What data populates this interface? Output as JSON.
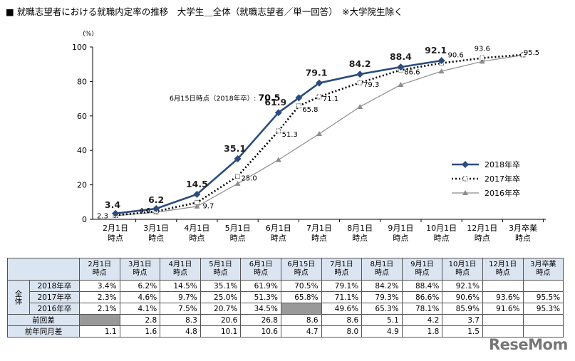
{
  "title": "■ 就職志望者における就職内定率の推移　大学生＿全体（就職志望者／単一回答）　※大学院生除く",
  "logo": "ReseMom",
  "chart_data": {
    "type": "line",
    "ylabel": "(%)",
    "ylim": [
      0,
      100
    ],
    "yticks": [
      "0",
      "20",
      "40",
      "60",
      "80",
      "100"
    ],
    "categories": [
      "2月1日|時点",
      "3月1日|時点",
      "4月1日|時点",
      "5月1日|時点",
      "6月1日|時点",
      "7月1日|時点",
      "8月1日|時点",
      "9月1日|時点",
      "10月1日|時点",
      "12月1日|時点",
      "3月卒業|時点"
    ],
    "series": [
      {
        "name": "2018年卒",
        "color": "#2b4c7e",
        "points": [
          [
            0,
            3.4
          ],
          [
            1,
            6.2
          ],
          [
            2,
            14.5
          ],
          [
            3,
            35.1
          ],
          [
            4,
            61.9
          ],
          [
            4.5,
            70.5
          ],
          [
            5,
            79.1
          ],
          [
            6,
            84.2
          ],
          [
            7,
            88.4
          ],
          [
            8,
            92.1
          ]
        ],
        "labels": [
          "3.4",
          "6.2",
          "14.5",
          "35.1",
          "61.9",
          "70.5",
          "79.1",
          "84.2",
          "88.4",
          "92.1"
        ]
      },
      {
        "name": "2017年卒",
        "color": "#000000",
        "points": [
          [
            0,
            2.3
          ],
          [
            1,
            4.6
          ],
          [
            2,
            9.7
          ],
          [
            3,
            25.0
          ],
          [
            4,
            51.3
          ],
          [
            4.5,
            65.8
          ],
          [
            5,
            71.1
          ],
          [
            6,
            79.3
          ],
          [
            7,
            86.6
          ],
          [
            8,
            90.6
          ],
          [
            9,
            93.6
          ],
          [
            10,
            95.5
          ]
        ],
        "labels": [
          "2.3",
          "4.6",
          "9.7",
          "25.0",
          "51.3",
          "65.8",
          "71.1",
          "79.3",
          "86.6",
          "90.6",
          "93.6",
          "95.5"
        ]
      },
      {
        "name": "2016年卒",
        "color": "#8c8c8c",
        "points": [
          [
            0,
            2.1
          ],
          [
            1,
            4.1
          ],
          [
            2,
            7.5
          ],
          [
            3,
            20.7
          ],
          [
            4,
            34.5
          ],
          [
            5,
            49.6
          ],
          [
            6,
            65.3
          ],
          [
            7,
            78.1
          ],
          [
            8,
            85.9
          ],
          [
            9,
            91.6
          ],
          [
            10,
            95.3
          ]
        ],
        "labels": []
      }
    ],
    "annotation": "6月15日時点（2018年卒）:"
  },
  "table": {
    "headers": [
      "2月1日|時点",
      "3月1日|時点",
      "4月1日|時点",
      "5月1日|時点",
      "6月1日|時点",
      "6月15日|時点",
      "7月1日|時点",
      "8月1日|時点",
      "9月1日|時点",
      "10月1日|時点",
      "12月1日|時点",
      "3月卒業|時点"
    ],
    "group_label": "全体",
    "rows": [
      {
        "label": "2018年卒",
        "cells": [
          "3.4%",
          "6.2%",
          "14.5%",
          "35.1%",
          "61.9%",
          "70.5%",
          "79.1%",
          "84.2%",
          "88.4%",
          "92.1%",
          "",
          ""
        ]
      },
      {
        "label": "2017年卒",
        "cells": [
          "2.3%",
          "4.6%",
          "9.7%",
          "25.0%",
          "51.3%",
          "65.8%",
          "71.1%",
          "79.3%",
          "86.6%",
          "90.6%",
          "93.6%",
          "95.5%"
        ]
      },
      {
        "label": "2016年卒",
        "cells": [
          "2.1%",
          "4.1%",
          "7.5%",
          "20.7%",
          "34.5%",
          "",
          "49.6%",
          "65.3%",
          "78.1%",
          "85.9%",
          "91.6%",
          "95.3%"
        ]
      },
      {
        "label": "前回差",
        "cells": [
          "",
          "2.8",
          "8.3",
          "20.6",
          "26.8",
          "8.6",
          "8.6",
          "5.1",
          "4.2",
          "3.7",
          "",
          ""
        ]
      },
      {
        "label": "前年同月差",
        "cells": [
          "1.1",
          "1.6",
          "4.8",
          "10.1",
          "10.6",
          "4.7",
          "8.0",
          "4.9",
          "1.8",
          "1.5",
          "",
          ""
        ]
      }
    ]
  }
}
